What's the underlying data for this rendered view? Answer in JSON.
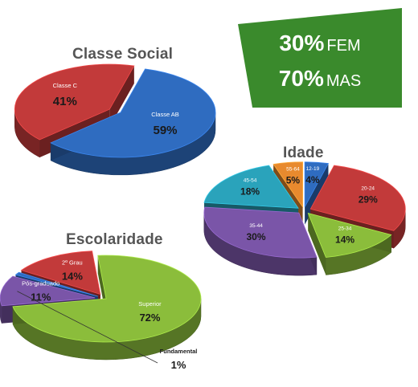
{
  "gender": {
    "rows": [
      {
        "pct": "30%",
        "label": "FEM"
      },
      {
        "pct": "70%",
        "label": "MAS"
      }
    ]
  },
  "chart_data": [
    {
      "type": "pie",
      "title": "Classe Social",
      "slices": [
        {
          "label": "Classe AB",
          "display": "59%",
          "value": 59,
          "color": "#2f6cc0"
        },
        {
          "label": "Classe C",
          "display": "41%",
          "value": 41,
          "color": "#c23a3a"
        }
      ]
    },
    {
      "type": "pie",
      "title": "Idade",
      "slices": [
        {
          "label": "12-19",
          "display": "4%",
          "value": 4,
          "color": "#2f6cc0"
        },
        {
          "label": "20-24",
          "display": "29%",
          "value": 29,
          "color": "#c23a3a"
        },
        {
          "label": "25-34",
          "display": "14%",
          "value": 14,
          "color": "#8bbd3b"
        },
        {
          "label": "35-44",
          "display": "30%",
          "value": 30,
          "color": "#7a55a8"
        },
        {
          "label": "45-54",
          "display": "18%",
          "value": 18,
          "color": "#2aa3bb"
        },
        {
          "label": "55-64",
          "display": "5%",
          "value": 5,
          "color": "#e88a2e"
        }
      ]
    },
    {
      "type": "pie",
      "title": "Escolaridade",
      "slices": [
        {
          "label": "Superior",
          "display": "72%",
          "value": 72,
          "color": "#8bbd3b"
        },
        {
          "label": "Pós-graduado",
          "display": "11%",
          "value": 11,
          "color": "#7a55a8"
        },
        {
          "label": "Fundamental",
          "display": "1%",
          "value": 1,
          "color": "#2f6cc0"
        },
        {
          "label": "2º Grau",
          "display": "14%",
          "value": 14,
          "color": "#c23a3a"
        }
      ]
    }
  ]
}
